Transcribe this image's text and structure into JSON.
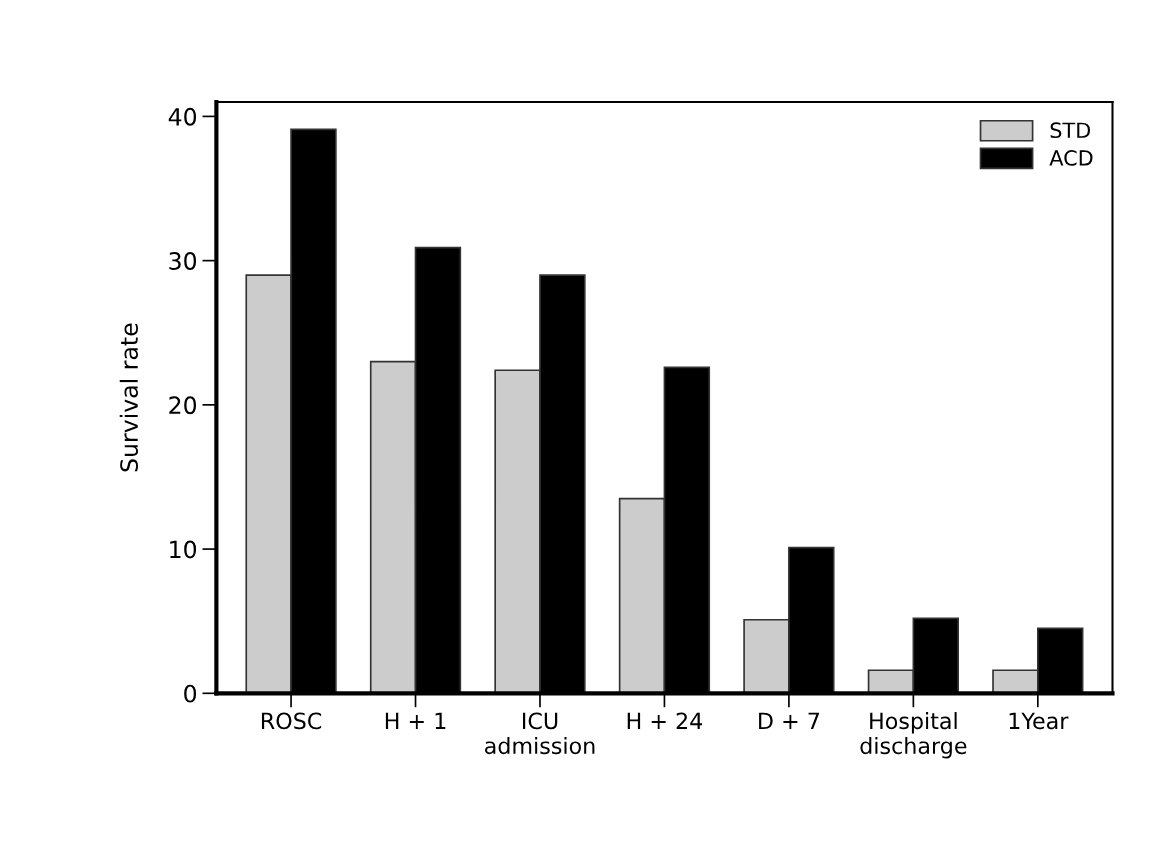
{
  "chart_data": {
    "type": "bar",
    "ylabel": "Survival rate",
    "categories": [
      "ROSC",
      "H + 1",
      "ICU\nadmission",
      "H + 24",
      "D + 7",
      "Hospital\ndischarge",
      "1Year"
    ],
    "series": [
      {
        "name": "STD",
        "color": "#cccccc",
        "values": [
          29.0,
          23.0,
          22.4,
          13.5,
          5.1,
          1.6,
          1.6
        ]
      },
      {
        "name": "ACD",
        "color": "#000000",
        "values": [
          39.1,
          30.9,
          29.0,
          22.6,
          10.1,
          5.2,
          4.5
        ]
      }
    ],
    "ylim": [
      0,
      41
    ],
    "yticks": [
      0,
      10,
      20,
      30,
      40
    ],
    "grid": false,
    "legend": "top right"
  }
}
